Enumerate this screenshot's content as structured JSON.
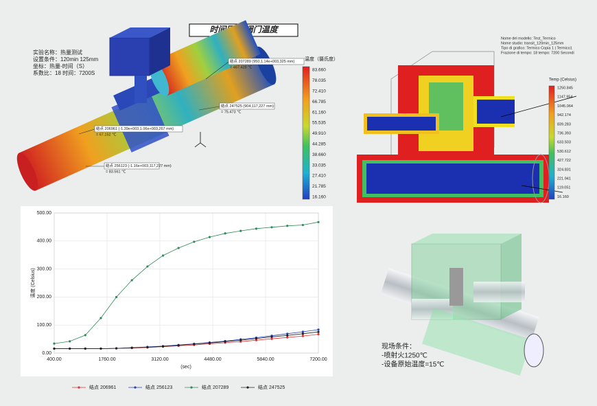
{
  "title": "时间历程  阀门温度",
  "left_model": {
    "info": [
      "实验名称：热量测试",
      "设置条件：120min 125mm",
      "坐标：热量-时间（S）",
      "系数比：18 时间：7200S"
    ],
    "legend_title": "温度（摄氏度）",
    "legend_ticks": [
      "83.660",
      "78.035",
      "72.410",
      "66.785",
      "61.160",
      "55.535",
      "49.910",
      "44.285",
      "38.660",
      "33.035",
      "27.410",
      "21.785",
      "16.160"
    ]
  },
  "callouts": [
    {
      "line1": "结点 207289 (950,1.14e+003,325 mm)",
      "line2": "= 467.428 ℃"
    },
    {
      "line1": "结点 247525 (904,117,227 mm)",
      "line2": "= 75.473 ℃"
    },
    {
      "line1": "结点 206961 (-1.39e+003,1.06e+003,267 mm)",
      "line2": "= 67.152 ℃"
    },
    {
      "line1": "结点 256123 (-1.16e+003,117,227 mm)",
      "line2": "= 83.561 ℃"
    }
  ],
  "right_model": {
    "info": [
      "Nome del modello: Test_Termico",
      "Nome studio: transit_120min_125mm",
      "Tipo di grafico: Termico Copia 1 | Termico1",
      "Frazione di tempo: 18   tempo: 7200 Secondi"
    ],
    "legend_title": "Temp (Celsius)",
    "legend_ticks": [
      "1250.845",
      "1147.954",
      "1045.064",
      "942.174",
      "839.283",
      "736.393",
      "633.503",
      "530.612",
      "427.722",
      "324.831",
      "221.941",
      "119.051",
      "16.160"
    ]
  },
  "conditions": [
    "现场条件：",
    "-喷射火1250℃",
    "-设备原始温度=15℃"
  ],
  "chart_data": {
    "type": "line",
    "xlabel": "(sec)",
    "ylabel": "温度 (Celsius)",
    "x": [
      400,
      800,
      1200,
      1600,
      2000,
      2400,
      2800,
      3200,
      3600,
      4000,
      4400,
      4800,
      5200,
      5600,
      6000,
      6400,
      6800,
      7200
    ],
    "series": [
      {
        "name": "结点 206961",
        "color": "#e03030",
        "values": [
          16,
          16,
          16,
          16,
          17,
          18,
          20,
          23,
          26,
          29,
          33,
          37,
          41,
          46,
          51,
          56,
          61,
          67.152
        ]
      },
      {
        "name": "结点 256123",
        "color": "#2040c0",
        "values": [
          16,
          16,
          16,
          16,
          17,
          19,
          22,
          25,
          29,
          33,
          38,
          43,
          49,
          55,
          62,
          69,
          76,
          83.561
        ]
      },
      {
        "name": "结点 207289",
        "color": "#2e8b57",
        "values": [
          34,
          42,
          64,
          125,
          200,
          260,
          309,
          348,
          375,
          397,
          414,
          427,
          436,
          444,
          449,
          454,
          457,
          467.428
        ]
      },
      {
        "name": "结点 247525",
        "color": "#202020",
        "values": [
          16,
          16,
          16,
          16,
          17,
          19,
          21,
          24,
          28,
          32,
          36,
          41,
          46,
          52,
          58,
          63,
          69,
          75.473
        ]
      }
    ],
    "xlim": [
      400,
      7200
    ],
    "xticks": [
      {
        "value": 400,
        "label": "400.00"
      },
      {
        "value": 1760,
        "label": "1760.00"
      },
      {
        "value": 3120,
        "label": "3120.00"
      },
      {
        "value": 4480,
        "label": "4480.00"
      },
      {
        "value": 5840,
        "label": "5840.00"
      },
      {
        "value": 7200,
        "label": "7200.00"
      }
    ],
    "ylim": [
      0,
      500
    ],
    "yticks": [
      {
        "value": 0,
        "label": "0.00"
      },
      {
        "value": 100,
        "label": "100.00"
      },
      {
        "value": 200,
        "label": "200.00"
      },
      {
        "value": 300,
        "label": "300.00"
      },
      {
        "value": 400,
        "label": "400.00"
      },
      {
        "value": 500,
        "label": "500.00"
      }
    ],
    "grid": true
  }
}
